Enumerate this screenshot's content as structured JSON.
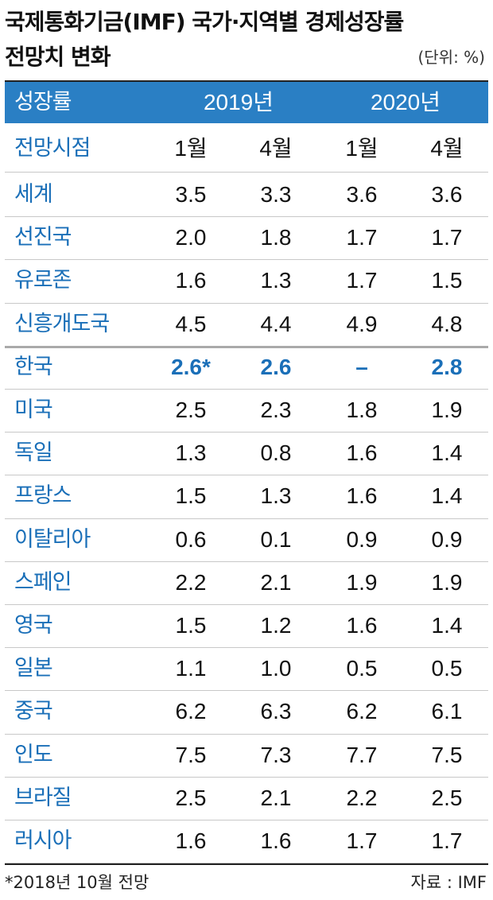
{
  "header": {
    "title_line1": "국제통화기금(IMF) 국가·지역별 경제성장률",
    "title_line2": "전망치 변화",
    "unit": "(단위: %)"
  },
  "table": {
    "header_row": [
      "성장률",
      "2019년",
      "2020년"
    ],
    "sub_header": [
      "전망시점",
      "1월",
      "4월",
      "1월",
      "4월"
    ],
    "rows": [
      [
        "세계",
        "3.5",
        "3.3",
        "3.6",
        "3.6"
      ],
      [
        "선진국",
        "2.0",
        "1.8",
        "1.7",
        "1.7"
      ],
      [
        "유로존",
        "1.6",
        "1.3",
        "1.7",
        "1.5"
      ],
      [
        "신흥개도국",
        "4.5",
        "4.4",
        "4.9",
        "4.8"
      ],
      [
        "한국",
        "2.6*",
        "2.6",
        "–",
        "2.8"
      ],
      [
        "미국",
        "2.5",
        "2.3",
        "1.8",
        "1.9"
      ],
      [
        "독일",
        "1.3",
        "0.8",
        "1.6",
        "1.4"
      ],
      [
        "프랑스",
        "1.5",
        "1.3",
        "1.6",
        "1.4"
      ],
      [
        "이탈리아",
        "0.6",
        "0.1",
        "0.9",
        "0.9"
      ],
      [
        "스페인",
        "2.2",
        "2.1",
        "1.9",
        "1.9"
      ],
      [
        "영국",
        "1.5",
        "1.2",
        "1.6",
        "1.4"
      ],
      [
        "일본",
        "1.1",
        "1.0",
        "0.5",
        "0.5"
      ],
      [
        "중국",
        "6.2",
        "6.3",
        "6.2",
        "6.1"
      ],
      [
        "인도",
        "7.5",
        "7.3",
        "7.7",
        "7.5"
      ],
      [
        "브라질",
        "2.5",
        "2.1",
        "2.2",
        "2.5"
      ],
      [
        "러시아",
        "1.6",
        "1.6",
        "1.7",
        "1.7"
      ]
    ]
  },
  "footer": {
    "note": "*2018년 10월 전망",
    "source": "자료 : IMF"
  }
}
